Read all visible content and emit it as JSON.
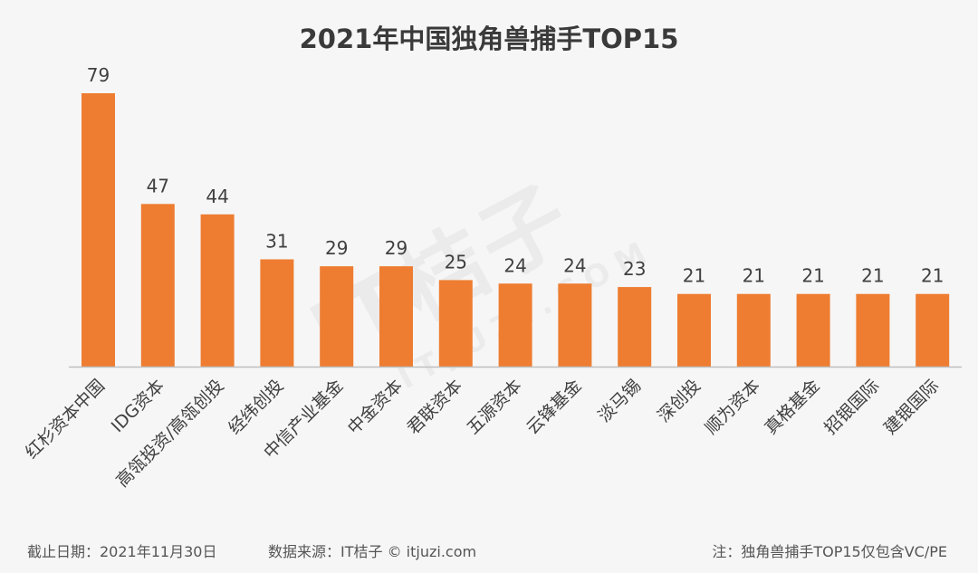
{
  "chart_data": {
    "type": "bar",
    "title": "2021年中国独角兽捕手TOP15",
    "categories": [
      "红杉资本中国",
      "IDG资本",
      "高瓴投资/高瓴创投",
      "经纬创投",
      "中信产业基金",
      "中金资本",
      "君联资本",
      "五源资本",
      "云锋基金",
      "淡马锡",
      "深创投",
      "顺为资本",
      "真格基金",
      "招银国际",
      "建银国际"
    ],
    "values": [
      79,
      47,
      44,
      31,
      29,
      29,
      25,
      24,
      24,
      23,
      21,
      21,
      21,
      21,
      21
    ],
    "xlabel": "",
    "ylabel": "",
    "ylim": [
      0,
      79
    ],
    "grid": false,
    "legend": "none",
    "bar_color": "#ee7d31"
  },
  "watermark": {
    "main": "IT桔子",
    "sub": "ITJUZI.COM"
  },
  "footer": {
    "cutoff": "截止日期：2021年11月30日",
    "source": "数据来源：IT桔子 © itjuzi.com",
    "note": "注：独角兽捕手TOP15仅包含VC/PE"
  },
  "colors": {
    "axis": "#bfbfbf",
    "label_text": "#404040"
  }
}
